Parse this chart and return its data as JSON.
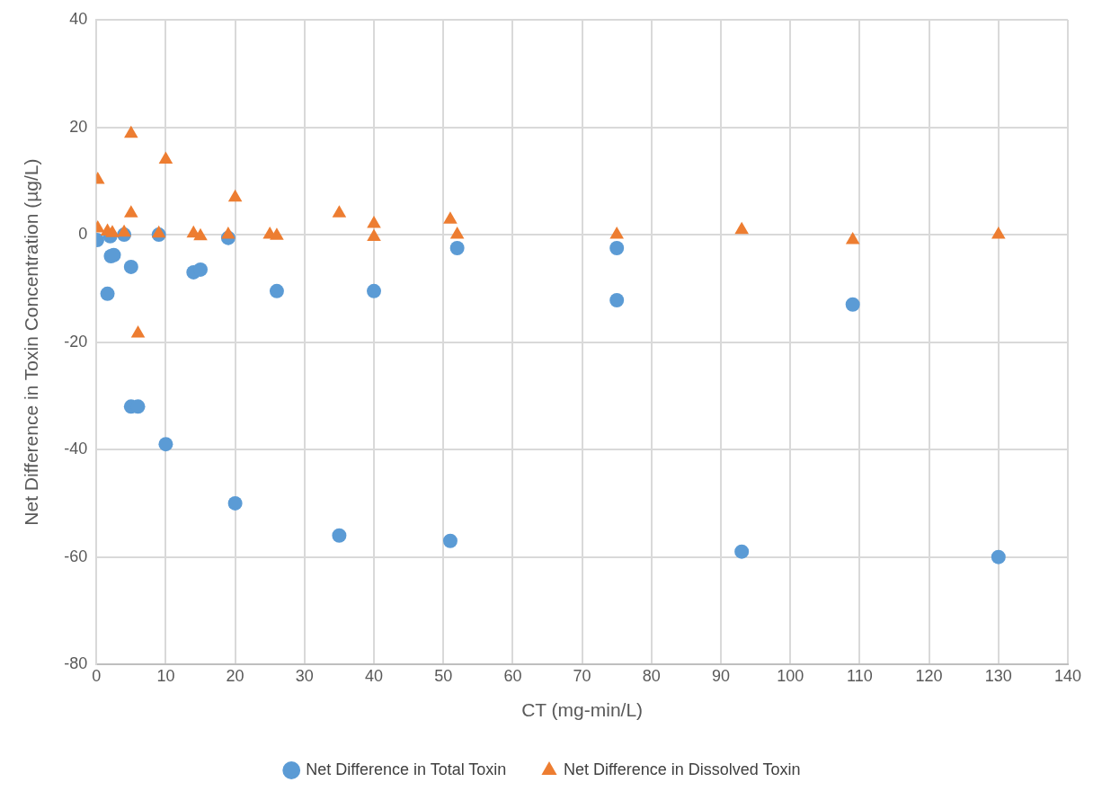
{
  "chart_data": {
    "type": "scatter",
    "xlabel": "CT (mg-min/L)",
    "ylabel": "Net Difference in Toxin Concentration (µg/L)",
    "xlim": [
      0,
      140
    ],
    "xticks": [
      0,
      10,
      20,
      30,
      40,
      50,
      60,
      70,
      80,
      90,
      100,
      110,
      120,
      130,
      140
    ],
    "ylim": [
      -80,
      40
    ],
    "yticks": [
      -80,
      -60,
      -40,
      -20,
      0,
      20,
      40
    ],
    "grid": true,
    "legend": "bottom",
    "series": [
      {
        "name": "Net Difference in Total Toxin",
        "color": "#5b9bd5",
        "marker": "circle",
        "x": [
          0.1,
          1.6,
          2,
          2.1,
          2.5,
          4,
          5,
          5,
          6,
          9,
          10,
          14,
          15,
          19,
          20,
          26,
          35,
          40,
          51,
          52,
          75,
          75,
          93,
          109,
          130
        ],
        "values": [
          -1,
          -11,
          -0.3,
          -4,
          -3.8,
          0,
          -6,
          -32,
          -32,
          0,
          -39,
          -7,
          -6.5,
          -0.6,
          -50,
          -10.5,
          -56,
          -10.5,
          -57,
          -2.5,
          -2.5,
          -12.2,
          -59,
          -13,
          -60
        ]
      },
      {
        "name": "Net Difference in Dissolved Toxin",
        "color": "#ed7d31",
        "marker": "triangle",
        "x": [
          0.2,
          0.2,
          1.6,
          2.3,
          4,
          5,
          5,
          6,
          9,
          10,
          14,
          15,
          19,
          20,
          25,
          26,
          35,
          40,
          40,
          51,
          52,
          75,
          93,
          109,
          130
        ],
        "values": [
          10.2,
          1.2,
          0.6,
          0.3,
          0.4,
          18.8,
          4,
          -18.4,
          0.2,
          14,
          0.2,
          -0.3,
          0,
          6.9,
          0,
          -0.2,
          4,
          2,
          -0.4,
          2.8,
          0,
          0,
          0.9,
          -1,
          0
        ]
      }
    ]
  }
}
